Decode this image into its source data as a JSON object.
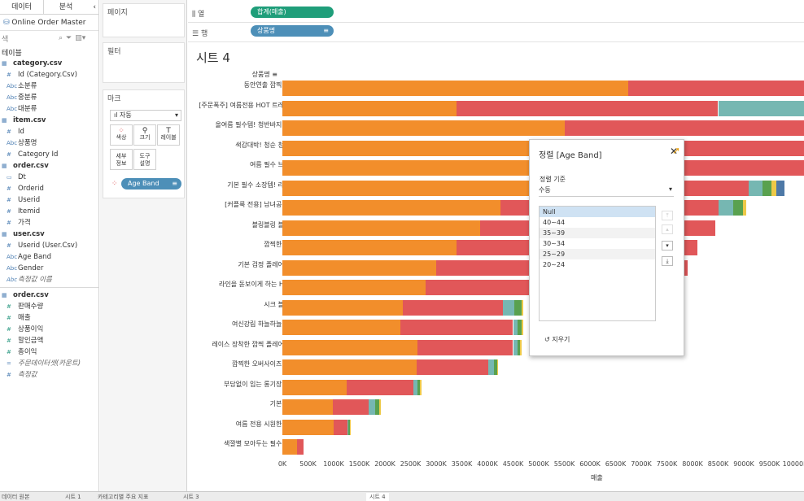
{
  "data_pane": {
    "tabs": [
      "데이터",
      "분석"
    ],
    "datasource": "Online Order Master",
    "search_placeholder": "색",
    "section_label": "테이블",
    "fields": [
      {
        "type": "table",
        "label": "category.csv"
      },
      {
        "type": "dim",
        "icon": "#",
        "label": "Id (Category.Csv)"
      },
      {
        "type": "dim",
        "icon": "Abc",
        "label": "소분류"
      },
      {
        "type": "dim",
        "icon": "Abc",
        "label": "중분류"
      },
      {
        "type": "dim",
        "icon": "Abc",
        "label": "대분류"
      },
      {
        "type": "table",
        "label": "item.csv"
      },
      {
        "type": "dim",
        "icon": "#",
        "label": "Id"
      },
      {
        "type": "dim",
        "icon": "Abc",
        "label": "상품명"
      },
      {
        "type": "dim",
        "icon": "#",
        "label": "Category Id"
      },
      {
        "type": "table",
        "label": "order.csv"
      },
      {
        "type": "dim",
        "icon": "▭",
        "label": "Dt"
      },
      {
        "type": "dim",
        "icon": "#",
        "label": "Orderid"
      },
      {
        "type": "dim",
        "icon": "#",
        "label": "Userid"
      },
      {
        "type": "dim",
        "icon": "#",
        "label": "Itemid"
      },
      {
        "type": "dim",
        "icon": "#",
        "label": "가격"
      },
      {
        "type": "table",
        "label": "user.csv"
      },
      {
        "type": "dim",
        "icon": "#",
        "label": "Userid (User.Csv)"
      },
      {
        "type": "dim",
        "icon": "Abc",
        "label": "Age Band"
      },
      {
        "type": "dim",
        "icon": "Abc",
        "label": "Gender"
      },
      {
        "type": "italic",
        "icon": "Abc",
        "label": "측정값 이름"
      },
      {
        "type": "sep"
      },
      {
        "type": "table",
        "label": "order.csv"
      },
      {
        "type": "measure",
        "icon": "#",
        "label": "판매수량"
      },
      {
        "type": "measure",
        "icon": "#",
        "label": "매출"
      },
      {
        "type": "measure",
        "icon": "#",
        "label": "상품이익"
      },
      {
        "type": "measure",
        "icon": "#",
        "label": "할인금액"
      },
      {
        "type": "measure",
        "icon": "#",
        "label": "총이익"
      },
      {
        "type": "italic",
        "icon": "=",
        "label": "주문데이터셋(카운트)"
      },
      {
        "type": "italic",
        "icon": "#",
        "label": "측정값"
      }
    ]
  },
  "cards": {
    "pages": "페이지",
    "filters": "필터",
    "marks": "마크",
    "mark_type": "자동",
    "buttons": [
      "색상",
      "크기",
      "레이블",
      "세부\n정보",
      "도구\n설명"
    ],
    "age_band_pill": "Age Band"
  },
  "shelves": {
    "columns_label": "열",
    "columns_pill": "합계(매출)",
    "rows_label": "행",
    "rows_pill": "상품명"
  },
  "sheet_title": "시트 4",
  "row_header": "상품명",
  "x_axis_title": "매출",
  "chart_data": {
    "type": "bar",
    "orientation": "horizontal-stacked",
    "title": "시트 4",
    "xlabel": "매출",
    "ylabel": "상품명",
    "xlim": [
      0,
      10000000
    ],
    "x_ticks": [
      "0K",
      "500K",
      "1000K",
      "1500K",
      "2000K",
      "2500K",
      "3000K",
      "3500K",
      "4000K",
      "4500K",
      "5000K",
      "5500K",
      "6000K",
      "6500K",
      "7000K",
      "7500K",
      "8000K",
      "8500K",
      "9000K",
      "9500K",
      "10000K"
    ],
    "series_names": [
      "20~24",
      "25~29",
      "30~34",
      "35~39",
      "40~44",
      "Null"
    ],
    "series_colors": [
      "#f28e2b",
      "#e15759",
      "#76b7b2",
      "#59a14f",
      "#edc948",
      "#4e79a7"
    ],
    "categories": [
      "동안연출 깜찍 원피스",
      "[주문폭주] 여름전용 HOT 트레이닝복",
      "올여름 필수템! 청반바지 필수템",
      "색감대박! 청순 청스커트",
      "여름 필수 브이넥티",
      "기본 필수 소장템! 라운드티",
      "[커플룩 전용] 남녀공용 셔츠",
      "블링블링 블라우스",
      "깜찍한 숏팬츠",
      "기본 검정 플레어스커트",
      "라인을 돋보이게 하는 H스커트",
      "시크 블라우스",
      "여신강림 하늘하늘 원피스",
      "레이스 장착한 깜찍 플레어스커트",
      "깜찍한 오버사이즈 티셔츠",
      "부담없이 입는 롱기장 원피스",
      "기본 가디건",
      "여름 전용 시원한 면바지",
      "색깔별 모아두는 필수 셔츠템"
    ],
    "values": [
      [
        6750000,
        3500000,
        0,
        0,
        0,
        0
      ],
      [
        3400000,
        5100000,
        1700000,
        0,
        0,
        0
      ],
      [
        5500000,
        4800000,
        0,
        0,
        0,
        0
      ],
      [
        6300000,
        4000000,
        0,
        0,
        0,
        0
      ],
      [
        6200000,
        4100000,
        0,
        0,
        0,
        0
      ],
      [
        6100000,
        3000000,
        270000,
        170000,
        90000,
        170000
      ],
      [
        4250000,
        4250000,
        300000,
        180000,
        60000,
        0
      ],
      [
        3850000,
        4600000,
        0,
        0,
        0,
        0
      ],
      [
        3400000,
        4700000,
        0,
        0,
        0,
        0
      ],
      [
        3000000,
        4900000,
        0,
        0,
        0,
        0
      ],
      [
        2800000,
        4900000,
        0,
        0,
        0,
        0
      ],
      [
        2350000,
        1950000,
        230000,
        130000,
        40000,
        0
      ],
      [
        2300000,
        2200000,
        80000,
        90000,
        30000,
        0
      ],
      [
        2640000,
        1860000,
        90000,
        50000,
        30000,
        0
      ],
      [
        2620000,
        1400000,
        100000,
        70000,
        20000,
        0
      ],
      [
        1250000,
        1300000,
        90000,
        50000,
        30000,
        0
      ],
      [
        980000,
        710000,
        120000,
        80000,
        30000,
        0
      ],
      [
        1000000,
        270000,
        20000,
        20000,
        10000,
        0
      ],
      [
        280000,
        130000,
        0,
        0,
        0,
        0
      ]
    ]
  },
  "sort_dialog": {
    "title": "정렬 [Age Band]",
    "sort_by_label": "정렬 기준",
    "sort_by_value": "수동",
    "items": [
      "Null",
      "40~44",
      "35~39",
      "30~34",
      "25~29",
      "20~24"
    ],
    "selected_index": 0,
    "clear_label": "지우기"
  },
  "bottom_tabs": [
    "데이터 원본",
    "시트 1",
    "카테고리별 주요 지표",
    "시트 3",
    "시트 4"
  ]
}
